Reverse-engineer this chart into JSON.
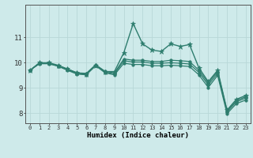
{
  "xlabel": "Humidex (Indice chaleur)",
  "xlim": [
    -0.5,
    23.5
  ],
  "ylim": [
    7.6,
    12.3
  ],
  "yticks": [
    8,
    9,
    10,
    11
  ],
  "xticks": [
    0,
    1,
    2,
    3,
    4,
    5,
    6,
    7,
    8,
    9,
    10,
    11,
    12,
    13,
    14,
    15,
    16,
    17,
    18,
    19,
    20,
    21,
    22,
    23
  ],
  "bg_color": "#ceeaea",
  "line_color": "#2e7d6e",
  "grid_color": "#b8d8d8",
  "lines": [
    {
      "y": [
        9.7,
        10.0,
        10.0,
        9.9,
        9.75,
        9.6,
        9.55,
        9.9,
        9.65,
        9.65,
        10.4,
        11.55,
        10.75,
        10.5,
        10.45,
        10.75,
        10.65,
        10.72,
        9.8,
        9.25,
        9.7,
        8.12,
        8.55,
        8.7
      ],
      "marker": "*",
      "ms": 4.5,
      "lw": 1.0
    },
    {
      "y": [
        9.7,
        9.98,
        9.98,
        9.88,
        9.75,
        9.6,
        9.58,
        9.92,
        9.66,
        9.6,
        10.15,
        10.1,
        10.1,
        10.05,
        10.05,
        10.1,
        10.08,
        10.05,
        9.7,
        9.2,
        9.65,
        8.1,
        8.5,
        8.65
      ],
      "marker": "o",
      "ms": 2.5,
      "lw": 0.9
    },
    {
      "y": [
        9.7,
        9.97,
        9.97,
        9.87,
        9.72,
        9.58,
        9.55,
        9.9,
        9.63,
        9.56,
        10.08,
        10.03,
        10.03,
        9.98,
        9.98,
        10.0,
        9.98,
        9.95,
        9.62,
        9.12,
        9.58,
        8.05,
        8.45,
        8.6
      ],
      "marker": "o",
      "ms": 2.5,
      "lw": 0.9
    },
    {
      "y": [
        9.7,
        9.96,
        9.96,
        9.86,
        9.7,
        9.55,
        9.52,
        9.88,
        9.6,
        9.52,
        9.98,
        9.93,
        9.93,
        9.88,
        9.88,
        9.9,
        9.88,
        9.85,
        9.52,
        9.02,
        9.5,
        7.98,
        8.38,
        8.52
      ],
      "marker": "o",
      "ms": 2.5,
      "lw": 0.9
    }
  ]
}
